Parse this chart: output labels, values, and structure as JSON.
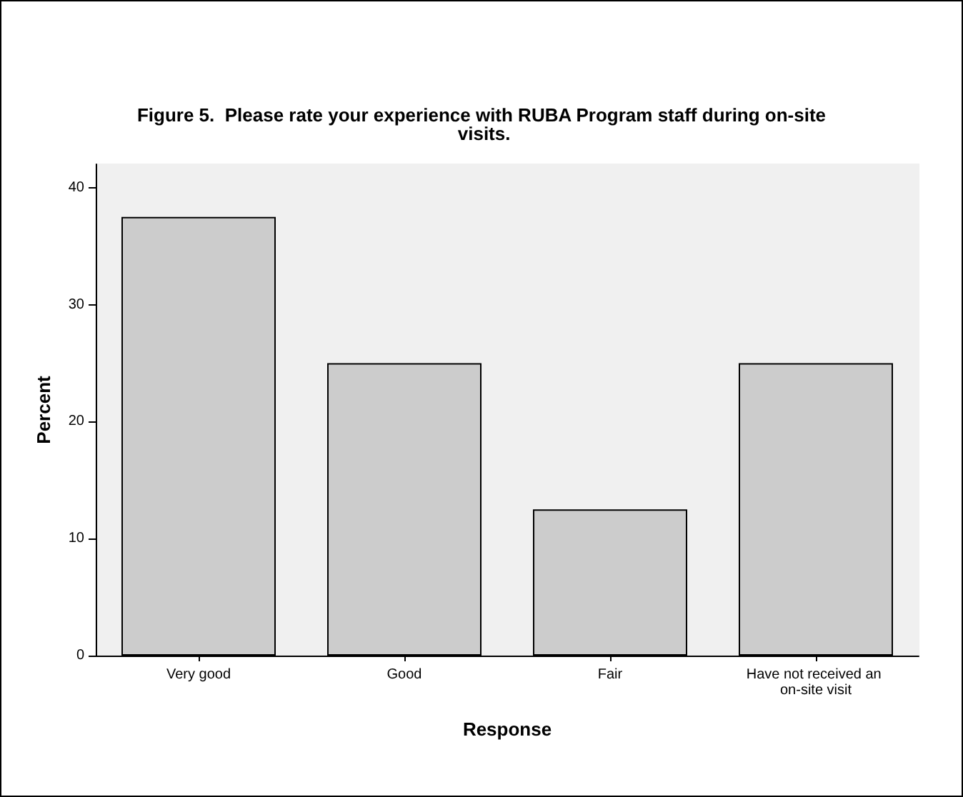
{
  "chart_data": {
    "type": "bar",
    "title": "Figure 5.  Please rate your experience with RUBA Program staff during on-site visits.",
    "xlabel": "Response",
    "ylabel": "Percent",
    "categories": [
      "Very good",
      "Good",
      "Fair",
      "Have not received an on-site visit"
    ],
    "values": [
      37.5,
      25,
      12.5,
      25
    ],
    "color": "#cccccc",
    "ylim": [
      0,
      42
    ],
    "yticks": [
      0,
      10,
      20,
      30,
      40
    ],
    "grid": false
  }
}
